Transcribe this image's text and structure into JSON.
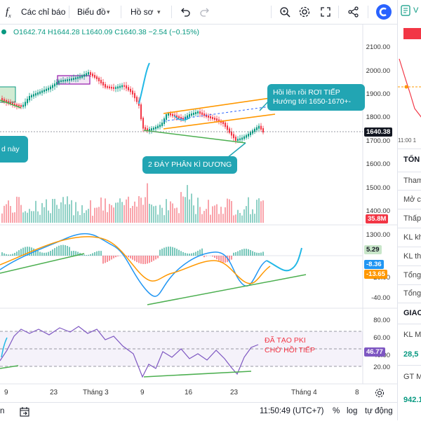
{
  "toolbar": {
    "fx_icon": "fx-icon",
    "indicators_label": "Các chỉ báo",
    "chart_type_label": "Biểu đồ",
    "profile_label": "Hồ sơ",
    "undo_icon": "undo-icon",
    "redo_icon": "redo-icon",
    "search_icon": "search-icon",
    "settings_icon": "gear-icon",
    "fullscreen_icon": "fullscreen-icon",
    "share_icon": "share-icon"
  },
  "legend": {
    "ohlc": "O1642.74 H1644.28 L1640.09 C1640.38 −2.54 (−0.15%)"
  },
  "price_axis": {
    "ticks": [
      "2100.00",
      "2000.00",
      "1900.00",
      "1800.00",
      "1700.00",
      "1600.00",
      "1500.00",
      "1400.00",
      "1300.00"
    ],
    "last_price": "1640.38",
    "volume_badge": "35.8M"
  },
  "macd_axis": {
    "ticks": [
      "20.00",
      "-40.00"
    ],
    "hist_badge": "5.29",
    "macd_badge": "-8.36",
    "signal_badge": "-13.65"
  },
  "rsi_axis": {
    "ticks": [
      "80.00",
      "60.00",
      "40.00",
      "20.00"
    ],
    "rsi_badge": "46.77"
  },
  "time_axis": {
    "labels": [
      "9",
      "23",
      "Tháng 3",
      "9",
      "16",
      "23",
      "Tháng 4",
      "8"
    ]
  },
  "annotations": {
    "callout_right": "Hồi lên rồi RƠI TIẾP\nHướng tới 1650-1670+-",
    "callout_left": "d này",
    "callout_bottom": "2 ĐÁY PHÂN KÌ DƯƠNG",
    "rsi_note_1": "ĐÃ TẠO PKI",
    "rsi_note_2": "CHỜ HỒI TIẾP"
  },
  "bottom_bar": {
    "left_label": "n",
    "time": "11:50:49 (UTC+7)",
    "percent": "%",
    "log": "log",
    "auto": "tự động"
  },
  "side_panel": {
    "symbol_head": "V",
    "time_label": "11:00 1",
    "tong_label": "TỔN",
    "rows": [
      "Tham",
      "Mở c",
      "Thấp",
      "KL kh",
      "KL th",
      "Tổng",
      "Tổng"
    ],
    "giao_label": "GIAO",
    "kl_label": "KL M",
    "kl_value": "28,5",
    "gt_label": "GT M",
    "gt_value": "942.1"
  },
  "colors": {
    "up": "#089981",
    "down": "#f23645",
    "accent": "#2962ff",
    "callout": "#22a5b3",
    "orange": "#ff9800",
    "purple": "#9c27b0"
  }
}
